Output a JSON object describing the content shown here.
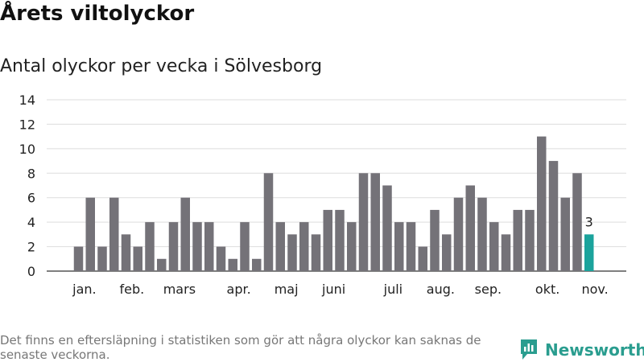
{
  "header": {
    "title": "Årets viltolyckor",
    "subtitle": "Antal olyckor per vecka i Sölvesborg"
  },
  "footer": {
    "note": "Det finns en eftersläpning i statistiken som gör att några olyckor kan saknas de senaste veckorna.",
    "brand": "Newsworthy",
    "brand_icon": "newsworthy-logo-icon",
    "brand_color": "#2a9d8f"
  },
  "chart_data": {
    "type": "bar",
    "title": "Årets viltolyckor",
    "subtitle": "Antal olyckor per vecka i Sölvesborg",
    "xlabel": "",
    "ylabel": "",
    "ylim": [
      0,
      14
    ],
    "yticks": [
      0,
      2,
      4,
      6,
      8,
      10,
      12,
      14
    ],
    "grid": true,
    "values": [
      2,
      6,
      2,
      6,
      3,
      2,
      4,
      1,
      4,
      6,
      4,
      4,
      2,
      1,
      4,
      1,
      8,
      4,
      3,
      4,
      3,
      5,
      5,
      4,
      8,
      8,
      7,
      4,
      4,
      2,
      5,
      3,
      6,
      7,
      6,
      4,
      3,
      5,
      5,
      11,
      9,
      6,
      8,
      3
    ],
    "month_labels": [
      {
        "label": "jan.",
        "bar_index": 0.5
      },
      {
        "label": "feb.",
        "bar_index": 4.5
      },
      {
        "label": "mars",
        "bar_index": 8.5
      },
      {
        "label": "apr.",
        "bar_index": 13.5
      },
      {
        "label": "maj",
        "bar_index": 17.5
      },
      {
        "label": "juni",
        "bar_index": 21.5
      },
      {
        "label": "juli",
        "bar_index": 26.5
      },
      {
        "label": "aug.",
        "bar_index": 30.5
      },
      {
        "label": "sep.",
        "bar_index": 34.5
      },
      {
        "label": "okt.",
        "bar_index": 39.5
      },
      {
        "label": "nov.",
        "bar_index": 43.5
      }
    ],
    "bar_color": "#747278",
    "highlight_color": "#1ba39c",
    "highlight_index": 43,
    "highlight_label": "3",
    "grid_color": "#dddddd",
    "axis_color": "#555555"
  }
}
